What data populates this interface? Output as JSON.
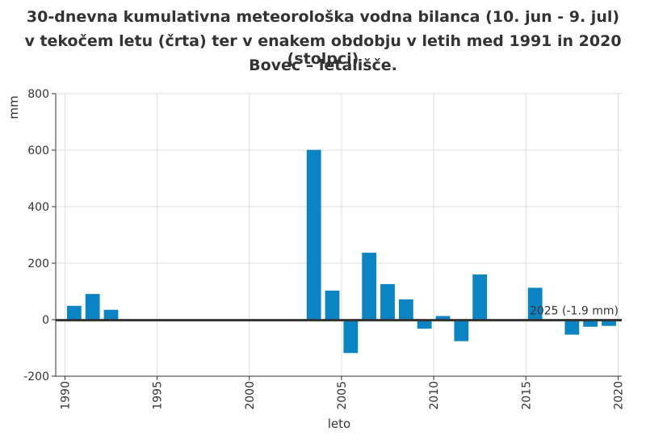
{
  "title_lines": [
    "30-dnevna kumulativna meteorološka vodna bilanca (10. jun - 9. jul)",
    "v tekočem letu (črta) ter v enakem obdobju v letih med 1991 in 2020 (stolpci)",
    "Bovec – letališče."
  ],
  "chart_data": {
    "type": "bar",
    "xlabel": "leto",
    "ylabel": "mm",
    "ylim": [
      -200,
      800
    ],
    "yticks": [
      -200,
      0,
      200,
      400,
      600,
      800
    ],
    "xlim": [
      1989.5,
      2020.2
    ],
    "xticks": [
      1990,
      1995,
      2000,
      2005,
      2010,
      2015,
      2020
    ],
    "grid": true,
    "bar_color": "#0b84c4",
    "line_color": "#333333",
    "x": [
      1991,
      1992,
      1993,
      1994,
      1995,
      1996,
      1997,
      1998,
      1999,
      2000,
      2001,
      2002,
      2003,
      2004,
      2005,
      2006,
      2007,
      2008,
      2009,
      2010,
      2011,
      2012,
      2013,
      2014,
      2015,
      2016,
      2017,
      2018,
      2019,
      2020
    ],
    "values": [
      49,
      91,
      35,
      null,
      null,
      null,
      null,
      null,
      null,
      null,
      null,
      null,
      null,
      601,
      103,
      -118,
      237,
      126,
      72,
      -32,
      13,
      -76,
      160,
      null,
      null,
      113,
      null,
      -53,
      -25,
      -22
    ],
    "current_year": {
      "label": "2025 (-1.9 mm)",
      "value": -1.9
    }
  }
}
